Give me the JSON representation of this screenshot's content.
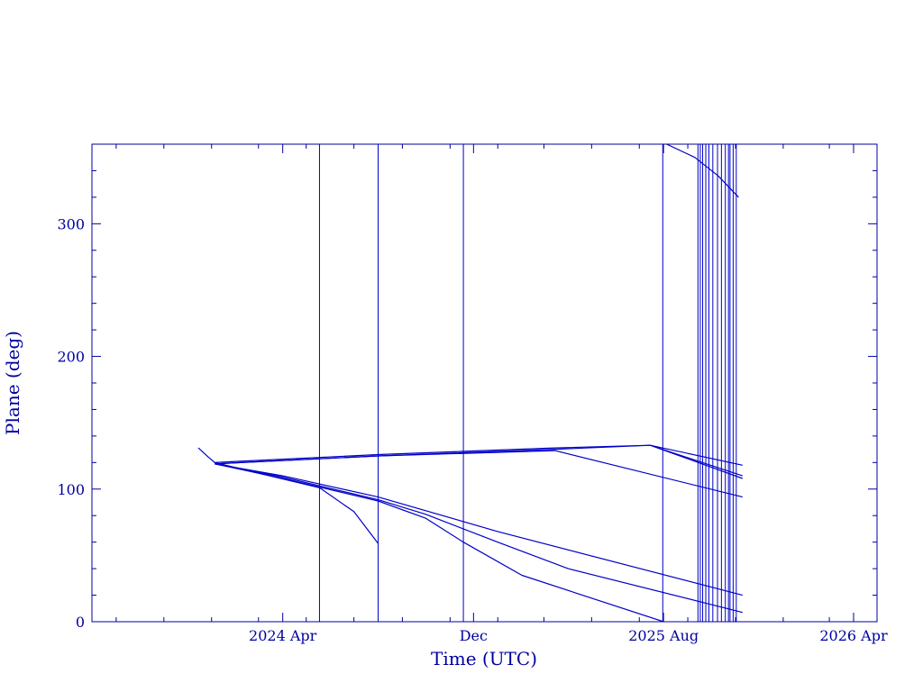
{
  "chart_data": {
    "type": "line",
    "xlabel": "Time (UTC)",
    "ylabel": "Plane (deg)",
    "xlim": [
      "2023-08-01",
      "2026-05-01"
    ],
    "ylim": [
      0,
      360
    ],
    "x_ticks": [
      {
        "date": "2024-04-01",
        "label": "2024 Apr"
      },
      {
        "date": "2024-12-01",
        "label": "Dec"
      },
      {
        "date": "2025-08-01",
        "label": "2025 Aug"
      },
      {
        "date": "2026-04-01",
        "label": "2026 Apr"
      }
    ],
    "y_ticks": [
      {
        "value": 0,
        "label": "0"
      },
      {
        "value": 100,
        "label": "100"
      },
      {
        "value": 200,
        "label": "200"
      },
      {
        "value": 300,
        "label": "300"
      }
    ],
    "color": "#0000c8",
    "axis_color": "#0000a0",
    "vertical_event_lines": [
      "2024-05-18",
      "2024-08-01",
      "2024-11-18",
      "2025-07-31",
      "2025-09-14",
      "2025-09-17",
      "2025-09-20",
      "2025-09-24",
      "2025-09-28",
      "2025-10-03",
      "2025-10-09",
      "2025-10-14",
      "2025-10-19",
      "2025-10-23",
      "2025-10-25",
      "2025-10-29",
      "2025-11-02"
    ],
    "series": [
      {
        "points": [
          [
            "2023-12-15",
            131
          ],
          [
            "2023-12-28",
            124
          ],
          [
            "2024-01-05",
            120
          ],
          [
            "2024-03-15",
            110
          ],
          [
            "2024-05-18",
            101
          ],
          [
            "2024-07-01",
            83
          ],
          [
            "2024-08-01",
            59
          ]
        ]
      },
      {
        "points": [
          [
            "2024-01-05",
            119
          ],
          [
            "2024-04-01",
            108
          ],
          [
            "2024-08-01",
            91
          ],
          [
            "2024-10-01",
            78
          ],
          [
            "2024-11-18",
            60
          ],
          [
            "2025-02-01",
            35
          ],
          [
            "2025-08-01",
            0
          ]
        ]
      },
      {
        "points": [
          [
            "2024-01-05",
            119
          ],
          [
            "2024-04-01",
            109
          ],
          [
            "2024-08-01",
            92
          ],
          [
            "2024-10-01",
            81
          ],
          [
            "2025-01-01",
            60
          ],
          [
            "2025-04-01",
            40
          ],
          [
            "2025-11-10",
            7
          ]
        ]
      },
      {
        "points": [
          [
            "2024-01-05",
            119
          ],
          [
            "2024-04-01",
            110
          ],
          [
            "2024-08-01",
            94
          ],
          [
            "2025-01-01",
            68
          ],
          [
            "2025-11-10",
            20
          ]
        ]
      },
      {
        "points": [
          [
            "2024-01-05",
            119
          ],
          [
            "2024-08-01",
            125
          ],
          [
            "2025-03-15",
            129
          ],
          [
            "2025-11-10",
            94
          ]
        ]
      },
      {
        "points": [
          [
            "2024-01-05",
            119
          ],
          [
            "2024-08-01",
            125
          ],
          [
            "2025-03-15",
            130
          ],
          [
            "2025-07-15",
            133
          ],
          [
            "2025-11-10",
            108
          ]
        ]
      },
      {
        "points": [
          [
            "2024-01-05",
            120
          ],
          [
            "2024-08-01",
            126
          ],
          [
            "2025-03-15",
            131
          ],
          [
            "2025-07-15",
            133
          ],
          [
            "2025-11-10",
            110
          ]
        ]
      },
      {
        "points": [
          [
            "2025-07-15",
            133
          ],
          [
            "2025-11-10",
            118
          ]
        ]
      },
      {
        "points": [
          [
            "2025-08-05",
            360
          ],
          [
            "2025-09-10",
            350
          ],
          [
            "2025-10-10",
            336
          ],
          [
            "2025-11-05",
            320
          ]
        ]
      }
    ]
  }
}
